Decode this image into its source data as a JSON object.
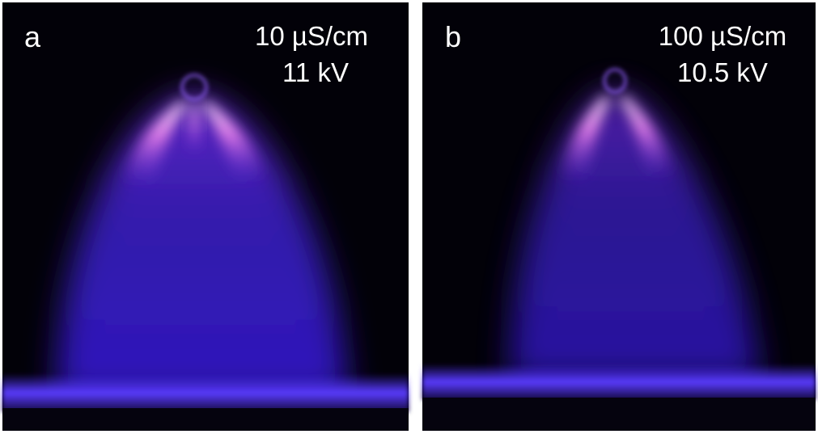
{
  "panels": [
    {
      "label": "a",
      "conductivity": "10 µS/cm",
      "voltage": "11 kV"
    },
    {
      "label": "b",
      "conductivity": "100 µS/cm",
      "voltage": "10.5 kV"
    }
  ]
}
